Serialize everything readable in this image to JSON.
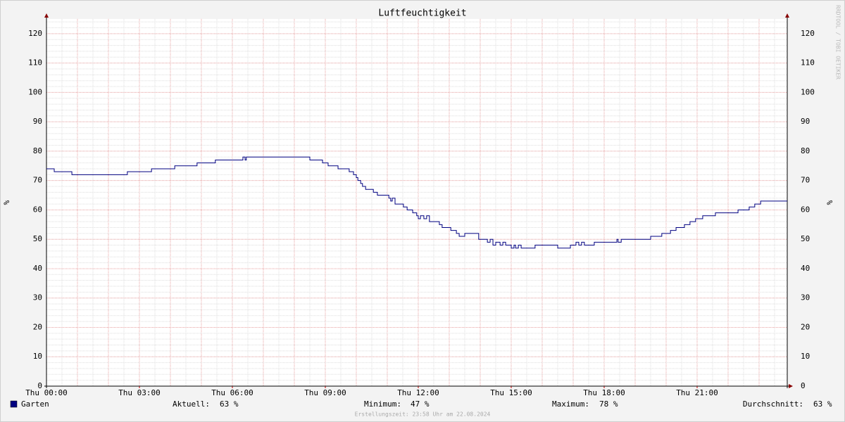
{
  "chart_data": {
    "type": "line",
    "title": "Luftfeuchtigkeit",
    "ylabel": "%",
    "watermark": "RRDTOOL / TOBI OETIKER",
    "footer": "Erstellungszeit: 23:58 Uhr am 22.08.2024",
    "xlim": [
      0,
      24
    ],
    "xticks": [
      {
        "value": 0,
        "label": "Thu 00:00"
      },
      {
        "value": 3,
        "label": "Thu 03:00"
      },
      {
        "value": 6,
        "label": "Thu 06:00"
      },
      {
        "value": 9,
        "label": "Thu 09:00"
      },
      {
        "value": 12,
        "label": "Thu 12:00"
      },
      {
        "value": 15,
        "label": "Thu 15:00"
      },
      {
        "value": 18,
        "label": "Thu 18:00"
      },
      {
        "value": 21,
        "label": "Thu 21:00"
      }
    ],
    "ylim": [
      0,
      125
    ],
    "yticks": [
      0,
      10,
      20,
      30,
      40,
      50,
      60,
      70,
      80,
      90,
      100,
      110,
      120
    ],
    "grid": true,
    "step": true,
    "series": [
      {
        "name": "Garten",
        "color": "#000080",
        "x": [
          0,
          0.25,
          0.82,
          2.61,
          3.39,
          4.14,
          4.86,
          5.45,
          6.34,
          6.41,
          6.45,
          8.5,
          8.91,
          9.09,
          9.41,
          9.77,
          9.91,
          10.0,
          10.05,
          10.14,
          10.2,
          10.3,
          10.55,
          10.68,
          11.05,
          11.11,
          11.16,
          11.25,
          11.52,
          11.64,
          11.82,
          11.95,
          12.0,
          12.07,
          12.18,
          12.27,
          12.36,
          12.68,
          12.77,
          13.05,
          13.23,
          13.32,
          13.5,
          13.95,
          14.23,
          14.32,
          14.41,
          14.5,
          14.64,
          14.73,
          14.82,
          15.0,
          15.09,
          15.14,
          15.23,
          15.32,
          15.77,
          16.5,
          16.91,
          17.09,
          17.18,
          17.27,
          17.36,
          17.68,
          18.41,
          18.45,
          18.55,
          19.5,
          19.86,
          20.14,
          20.32,
          20.59,
          20.77,
          20.95,
          21.18,
          21.59,
          22.32,
          22.68,
          22.86,
          23.05,
          23.91
        ],
        "values": [
          74,
          73,
          72,
          73,
          74,
          75,
          76,
          77,
          78,
          77,
          78,
          77,
          76,
          75,
          74,
          73,
          72,
          71,
          70,
          69,
          68,
          67,
          66,
          65,
          64,
          63,
          64,
          62,
          61,
          60,
          59,
          58,
          57,
          58,
          57,
          58,
          56,
          55,
          54,
          53,
          52,
          51,
          52,
          50,
          49,
          50,
          48,
          49,
          48,
          49,
          48,
          47,
          48,
          47,
          48,
          47,
          48,
          47,
          48,
          49,
          48,
          49,
          48,
          49,
          50,
          49,
          50,
          51,
          52,
          53,
          54,
          55,
          56,
          57,
          58,
          59,
          60,
          61,
          62,
          63,
          63
        ]
      }
    ],
    "stats": [
      {
        "label": "Aktuell:",
        "value": "63 %"
      },
      {
        "label": "Minimum:",
        "value": "47 %"
      },
      {
        "label": "Maximum:",
        "value": "78 %"
      },
      {
        "label": "Durchschnitt:",
        "value": "63 %"
      }
    ]
  }
}
